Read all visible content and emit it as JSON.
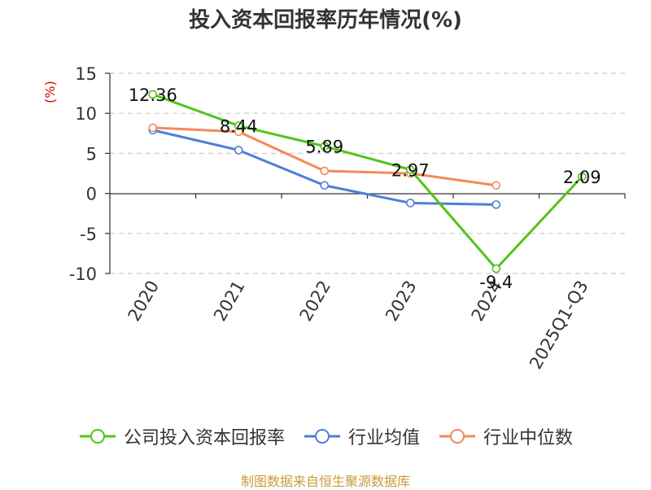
{
  "chart_data": {
    "type": "line",
    "title": "投入资本回报率历年情况(%)",
    "ylabel": "(%)",
    "xlabel": "",
    "categories": [
      "2020",
      "2021",
      "2022",
      "2023",
      "2024",
      "2025Q1-Q3"
    ],
    "ylim": [
      -10,
      15
    ],
    "yticks": [
      15,
      10,
      5,
      0,
      -5,
      -10
    ],
    "grid": true,
    "legend_position": "bottom",
    "series": [
      {
        "name": "公司投入资本回报率",
        "color": "#52c41a",
        "values": [
          12.36,
          8.44,
          5.89,
          2.97,
          -9.4,
          2.09
        ],
        "labels": [
          "12.36",
          "8.44",
          "5.89",
          "2.97",
          "-9.4",
          "2.09"
        ]
      },
      {
        "name": "行业均值",
        "color": "#4e7fd6",
        "values": [
          7.9,
          5.4,
          1.0,
          -1.2,
          -1.4,
          null
        ]
      },
      {
        "name": "行业中位数",
        "color": "#f5895a",
        "values": [
          8.2,
          7.7,
          2.8,
          2.5,
          1.0,
          null
        ]
      }
    ]
  },
  "source": "制图数据来自恒生聚源数据库"
}
